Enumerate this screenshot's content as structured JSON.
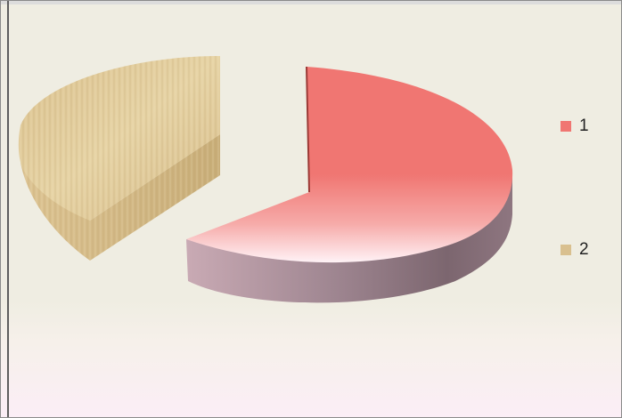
{
  "chart_data": {
    "type": "pie",
    "style": "3d-exploded",
    "slices": [
      {
        "label": "1",
        "value": 64,
        "color": "#f07672"
      },
      {
        "label": "2",
        "value": 36,
        "color": "#d9c08f"
      }
    ],
    "legend": {
      "position": "right"
    }
  }
}
